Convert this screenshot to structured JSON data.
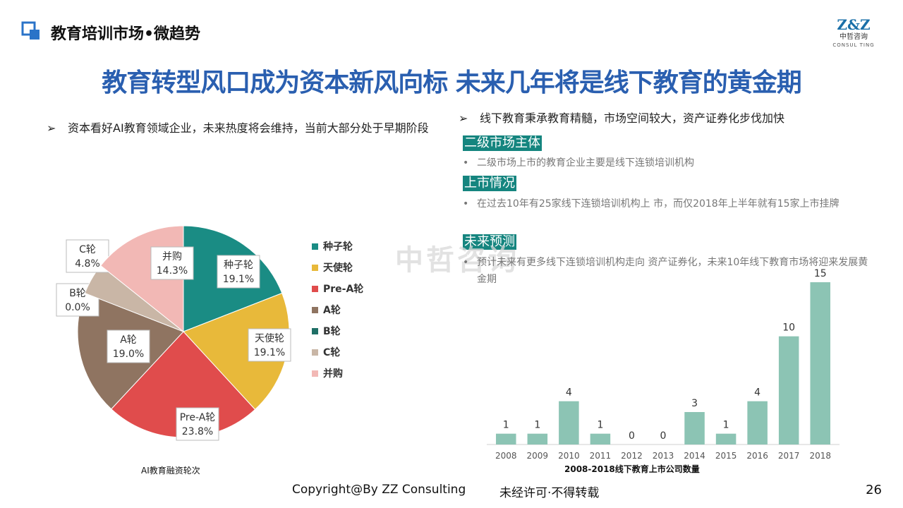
{
  "header": {
    "section_title": "教育培训市场•微趋势",
    "brand_mark": "Z&Z",
    "brand_cn": "中哲咨询",
    "brand_en": "CONSUL TING"
  },
  "headline": "教育转型风口成为资本新风向标 未来几年将是线下教育的黄金期",
  "left_bullet": {
    "arrow": "➢",
    "text": "资本看好AI教育领域企业，未来热度将会维持，当前大部分处于早期阶段"
  },
  "right_bullet": {
    "arrow": "➢",
    "text": "线下教育秉承教育精髓，市场空间较大，资产证券化步伐加快"
  },
  "sections": [
    {
      "tag": "二级市场主体",
      "dot": "•",
      "text": "二级市场上市的教育企业主要是线下连锁培训机构"
    },
    {
      "tag": "上市情况",
      "dot": "•",
      "text": "在过去10年有25家线下连锁培训机构上  市，而仅2018年上半年就有15家上市挂牌"
    },
    {
      "tag": "未来预测",
      "dot": "•",
      "text": "预计未来有更多线下连锁培训机构走向 资产证券化，未来10年线下教育市场将迎来发展黄金期"
    }
  ],
  "watermark": "中哲咨询",
  "chart_data": [
    {
      "type": "pie",
      "title": "AI教育融资轮次",
      "legend_position": "right",
      "slices": [
        {
          "label": "种子轮",
          "value": 19.1,
          "display": "19.1%",
          "color": "#1a8c84"
        },
        {
          "label": "天使轮",
          "value": 19.1,
          "display": "19.1%",
          "color": "#e8b93a"
        },
        {
          "label": "Pre-A轮",
          "value": 23.8,
          "display": "23.8%",
          "color": "#e04c4c"
        },
        {
          "label": "A轮",
          "value": 19.0,
          "display": "19.0%",
          "color": "#8f7461"
        },
        {
          "label": "B轮",
          "value": 0.0,
          "display": "0.0%",
          "color": "#1f6f66"
        },
        {
          "label": "C轮",
          "value": 4.8,
          "display": "4.8%",
          "color": "#c9b6a6"
        },
        {
          "label": "并购",
          "value": 14.3,
          "display": "14.3%",
          "color": "#f2b8b5"
        }
      ]
    },
    {
      "type": "bar",
      "title": "2008-2018线下教育上市公司数量",
      "categories": [
        "2008",
        "2009",
        "2010",
        "2011",
        "2012",
        "2013",
        "2014",
        "2015",
        "2016",
        "2017",
        "2018"
      ],
      "values": [
        1,
        1,
        4,
        1,
        0,
        0,
        3,
        1,
        4,
        10,
        15
      ],
      "bar_color": "#8cc4b4",
      "ylim": [
        0,
        15
      ],
      "grid": false
    }
  ],
  "footer": {
    "copyright": "Copyright@By ZZ Consulting",
    "note": "未经许可·不得转载",
    "page_number": "26"
  }
}
